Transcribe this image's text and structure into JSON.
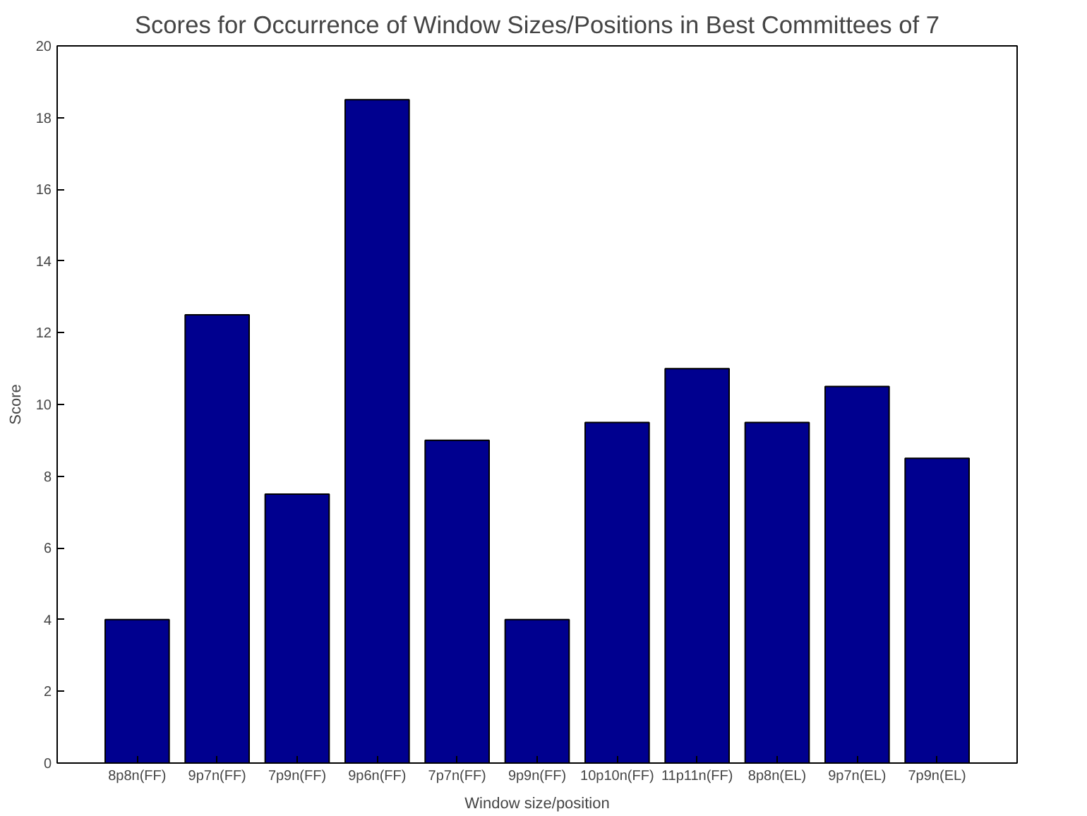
{
  "chart_data": {
    "type": "bar",
    "title": "Scores for Occurrence of Window Sizes/Positions in Best Committees of 7",
    "xlabel": "Window size/position",
    "ylabel": "Score",
    "categories": [
      "8p8n(FF)",
      "9p7n(FF)",
      "7p9n(FF)",
      "9p6n(FF)",
      "7p7n(FF)",
      "9p9n(FF)",
      "10p10n(FF)",
      "11p11n(FF)",
      "8p8n(EL)",
      "9p7n(EL)",
      "7p9n(EL)"
    ],
    "values": [
      4,
      12.5,
      7.5,
      18.5,
      9,
      4,
      9.5,
      11,
      9.5,
      10.5,
      8.5
    ],
    "color": "#00008f",
    "ylim": [
      0,
      20
    ],
    "yticks": [
      0,
      2,
      4,
      6,
      8,
      10,
      12,
      14,
      16,
      18,
      20
    ],
    "grid": false
  }
}
